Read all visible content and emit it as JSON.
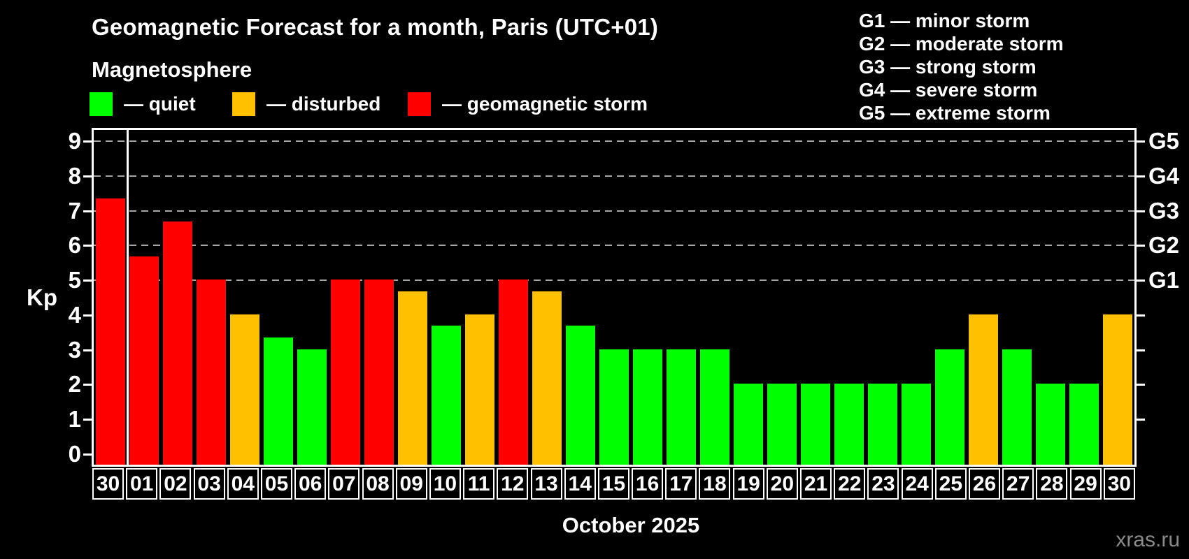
{
  "chart_data": {
    "type": "bar",
    "title": "Geomagnetic Forecast for a month, Paris (UTC+01)",
    "subtitle": "Magnetosphere",
    "xlabel": "October 2025",
    "ylabel": "Kp",
    "ylim": [
      0,
      9.4
    ],
    "grid": "dashed horizontal lines at Kp 5,6,7,8,9",
    "legend_position": "top",
    "categories": [
      "30",
      "01",
      "02",
      "03",
      "04",
      "05",
      "06",
      "07",
      "08",
      "09",
      "10",
      "11",
      "12",
      "13",
      "14",
      "15",
      "16",
      "17",
      "18",
      "19",
      "20",
      "21",
      "22",
      "23",
      "24",
      "25",
      "26",
      "27",
      "28",
      "29",
      "30"
    ],
    "values": [
      7.33,
      5.67,
      6.67,
      5,
      4,
      3.33,
      3,
      5,
      5,
      4.67,
      3.67,
      4,
      5,
      4.67,
      3.67,
      3,
      3,
      3,
      3,
      2,
      2,
      2,
      2,
      2,
      2,
      3,
      4,
      3,
      2,
      2,
      4
    ],
    "statuses": [
      "storm",
      "storm",
      "storm",
      "storm",
      "disturbed",
      "quiet",
      "quiet",
      "storm",
      "storm",
      "disturbed",
      "quiet",
      "disturbed",
      "storm",
      "disturbed",
      "quiet",
      "quiet",
      "quiet",
      "quiet",
      "quiet",
      "quiet",
      "quiet",
      "quiet",
      "quiet",
      "quiet",
      "quiet",
      "quiet",
      "disturbed",
      "quiet",
      "quiet",
      "quiet",
      "disturbed"
    ],
    "colors": {
      "quiet": "#00ff00",
      "disturbed": "#ffc000",
      "storm": "#ff0000"
    },
    "y_ticks_left": [
      "0",
      "1",
      "2",
      "3",
      "4",
      "5",
      "6",
      "7",
      "8",
      "9"
    ],
    "right_axis_labels": [
      {
        "kp": 5,
        "label": "G1"
      },
      {
        "kp": 6,
        "label": "G2"
      },
      {
        "kp": 7,
        "label": "G3"
      },
      {
        "kp": 8,
        "label": "G4"
      },
      {
        "kp": 9,
        "label": "G5"
      }
    ],
    "gridlines_at": [
      5,
      6,
      7,
      8,
      9
    ],
    "month_separator_after_index": 0
  },
  "legend": {
    "items": [
      {
        "status": "quiet",
        "label": "— quiet",
        "color": "#00ff00"
      },
      {
        "status": "disturbed",
        "label": "— disturbed",
        "color": "#ffc000"
      },
      {
        "status": "storm",
        "label": "— geomagnetic storm",
        "color": "#ff0000"
      }
    ]
  },
  "g_scale_legend": {
    "items": [
      "G1 — minor storm",
      "G2 — moderate storm",
      "G3 — strong storm",
      "G4 — severe storm",
      "G5 — extreme storm"
    ]
  },
  "footer": {
    "watermark": "xras.ru"
  }
}
